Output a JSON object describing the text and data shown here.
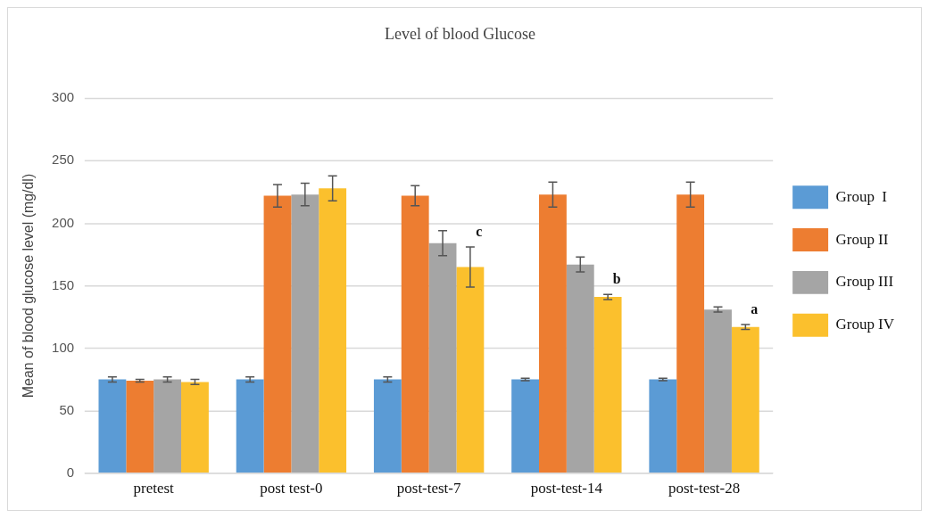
{
  "chart_data": {
    "type": "bar",
    "title": "Level of blood Glucose",
    "ylabel": "Mean of blood glucose level (mg/dl)",
    "categories": [
      "pretest",
      "post test-0",
      "post-test-7",
      "post-test-14",
      "post-test-28"
    ],
    "series": [
      {
        "name": "Group  I",
        "color": "#5b9bd5",
        "values": [
          75,
          75,
          75,
          75,
          75
        ],
        "errors": [
          2,
          2,
          2,
          1,
          1
        ]
      },
      {
        "name": "Group II",
        "color": "#ed7d31",
        "values": [
          74,
          222,
          222,
          223,
          223
        ],
        "errors": [
          1,
          9,
          8,
          10,
          10
        ]
      },
      {
        "name": "Group III",
        "color": "#a5a5a5",
        "values": [
          75,
          223,
          184,
          167,
          131
        ],
        "errors": [
          2,
          9,
          10,
          6,
          2
        ]
      },
      {
        "name": "Group IV",
        "color": "#fbc02d",
        "values": [
          73,
          228,
          165,
          141,
          117
        ],
        "errors": [
          2,
          10,
          16,
          2,
          2
        ]
      }
    ],
    "ylim": [
      0,
      300
    ],
    "yticks": [
      0,
      50,
      100,
      150,
      200,
      250,
      300
    ],
    "grid": "y",
    "legend": "right",
    "annotations": [
      "c",
      "b",
      "a"
    ]
  }
}
